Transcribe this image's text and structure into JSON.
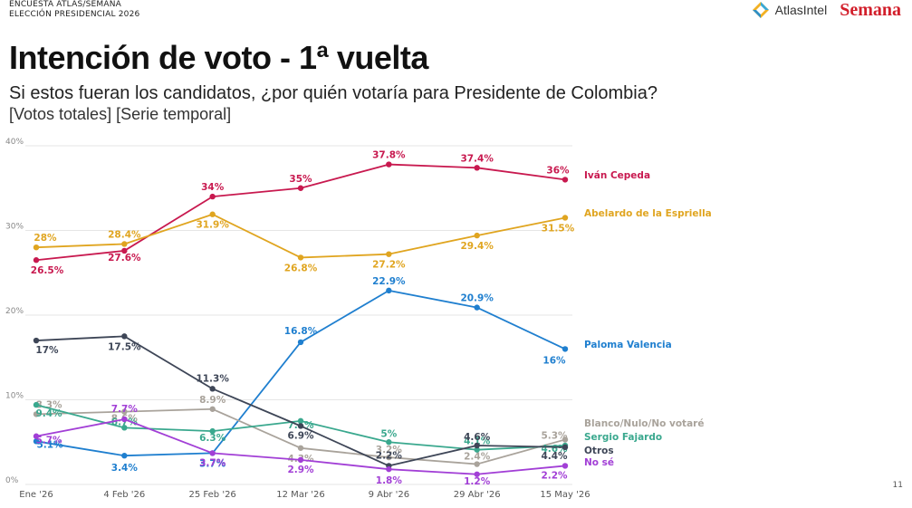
{
  "header": {
    "kicker_line1": "ENCUESTA ATLAS/SEMANA",
    "kicker_line2": "ELECCIÓN PRESIDENCIAL 2026",
    "brand_atlas": "AtlasIntel",
    "brand_semana": "Semana",
    "title": "Intención de voto - 1ª vuelta",
    "subtitle": "Si estos fueran los candidatos, ¿por quién votaría para Presidente de Colombia?",
    "note": "[Votos totales] [Serie temporal]"
  },
  "page_number": "11",
  "colors": {
    "semana_red": "#d21f2b",
    "grid": "#e6e6e6"
  },
  "chart_data": {
    "type": "line",
    "categories": [
      "Ene '26",
      "4 Feb '26",
      "25 Feb '26",
      "12 Mar '26",
      "9 Abr '26",
      "29 Abr '26",
      "15 May '26"
    ],
    "ylim": [
      0,
      40
    ],
    "yticks": [
      "0%",
      "10%",
      "20%",
      "30%",
      "40%"
    ],
    "grid": true,
    "legend": "right, end of lines",
    "series": [
      {
        "name": "Iván Cepeda",
        "color": "#c8194f",
        "values": [
          26.5,
          27.6,
          34,
          35,
          37.8,
          37.4,
          36
        ],
        "labels": [
          "26.5%",
          "27.6%",
          "34%",
          "35%",
          "37.8%",
          "37.4%",
          "36%"
        ]
      },
      {
        "name": "Abelardo de la Espriella",
        "color": "#e0a520",
        "values": [
          28,
          28.4,
          31.9,
          26.8,
          27.2,
          29.4,
          31.5
        ],
        "labels": [
          "28%",
          "28.4%",
          "31.9%",
          "26.8%",
          "27.2%",
          "29.4%",
          "31.5%"
        ]
      },
      {
        "name": "Paloma Valencia",
        "color": "#1f7fcf",
        "values": [
          5.1,
          3.4,
          3.7,
          16.8,
          22.9,
          20.9,
          16
        ],
        "labels": [
          "5.1%",
          "3.4%",
          "3.7%",
          "16.8%",
          "22.9%",
          "20.9%",
          "16%"
        ]
      },
      {
        "name": "Blanco/Nulo/No votaré",
        "color": "#a9a39b",
        "values": [
          8.3,
          8.6,
          8.9,
          4.3,
          3.2,
          2.4,
          5.3
        ],
        "labels": [
          "8.3%",
          "8.6%",
          "8.9%",
          "4.3%",
          "3.2%",
          "2.4%",
          "5.3%"
        ]
      },
      {
        "name": "Sergio Fajardo",
        "color": "#3aa88e",
        "values": [
          9.4,
          6.7,
          6.3,
          7.5,
          5,
          4.1,
          4.6
        ],
        "labels": [
          "9.4%",
          "6.7%",
          "6.3%",
          "7.5%",
          "5%",
          "4.1%",
          "4.6%"
        ]
      },
      {
        "name": "Otros",
        "color": "#3e4657",
        "values": [
          17,
          17.5,
          11.3,
          6.9,
          2.2,
          4.6,
          4.4
        ],
        "labels": [
          "17%",
          "17.5%",
          "11.3%",
          "6.9%",
          "2.2%",
          "4.6%",
          "4.4%"
        ]
      },
      {
        "name": "No sé",
        "color": "#a23fd6",
        "values": [
          5.7,
          7.7,
          3.7,
          2.9,
          1.8,
          1.2,
          2.2
        ],
        "labels": [
          "5.7%",
          "7.7%",
          "3.7%",
          "2.9%",
          "1.8%",
          "1.2%",
          "2.2%"
        ]
      }
    ]
  }
}
